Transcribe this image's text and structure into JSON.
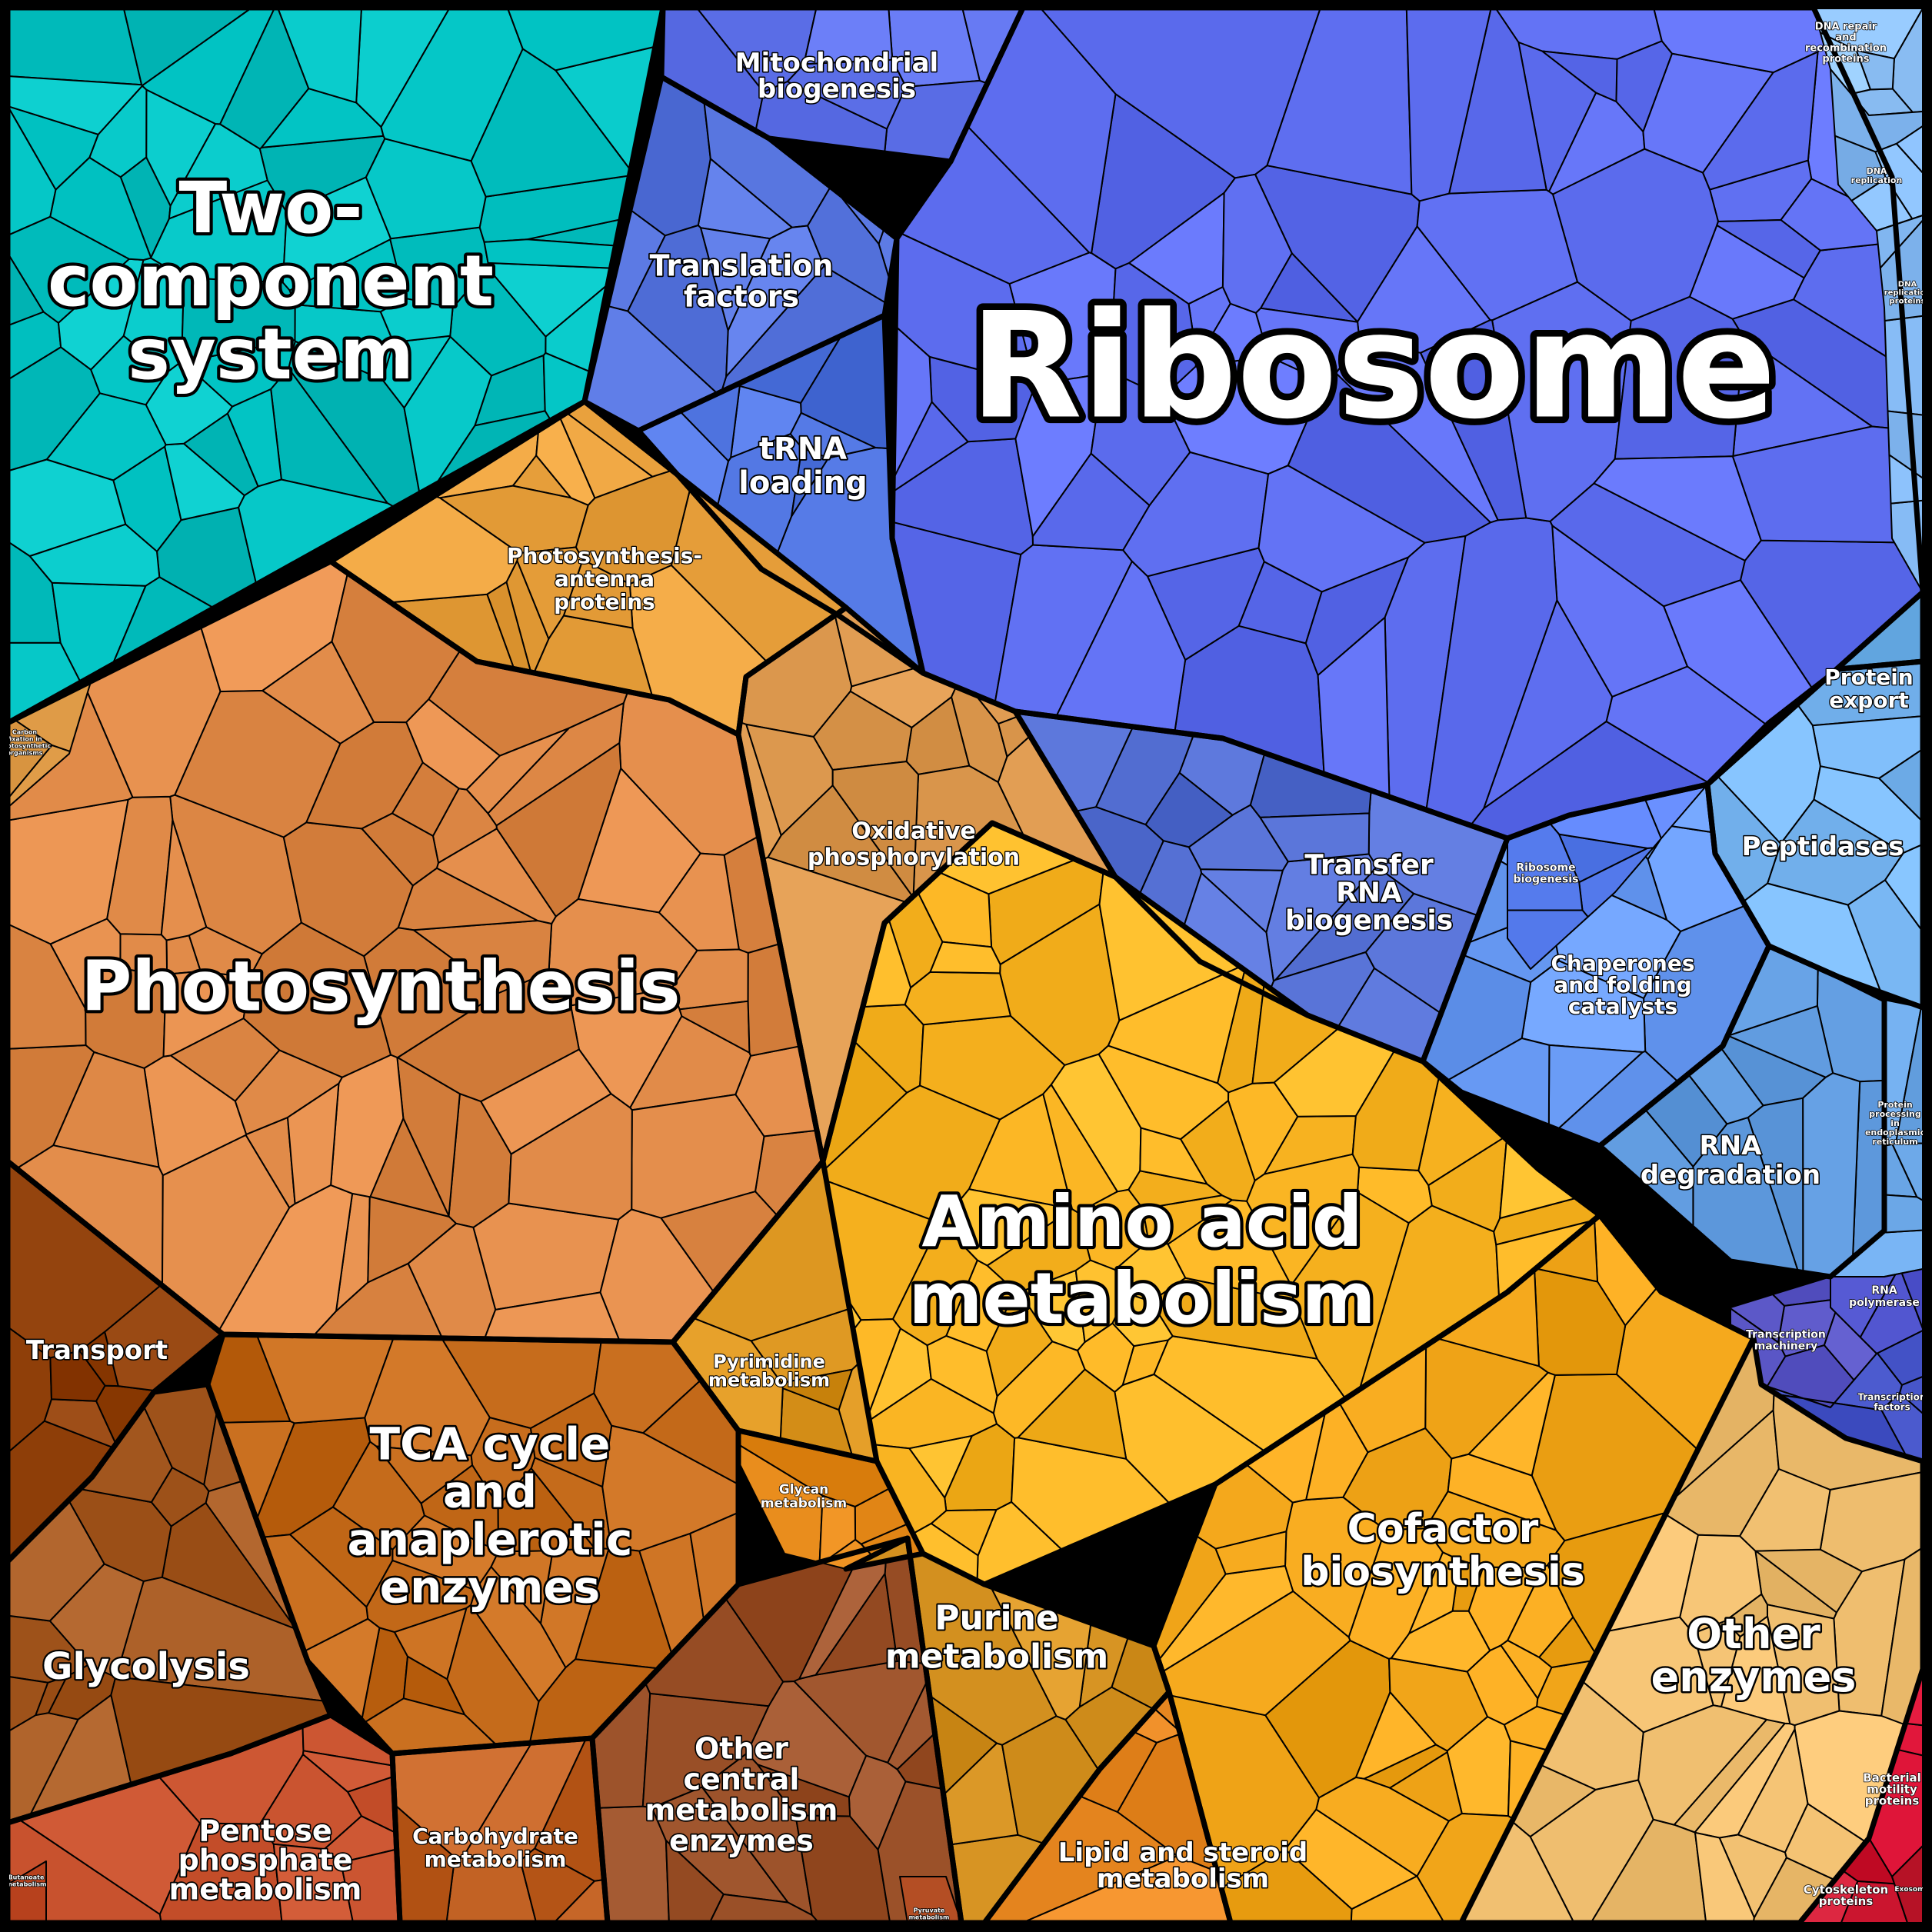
{
  "regions": [
    {
      "key": "two_component",
      "label_lines": [
        "Two-",
        "component",
        "system"
      ],
      "color": "#00c2c2",
      "role": "category"
    },
    {
      "key": "mitochondrial_biogenesis",
      "label_lines": [
        "Mitochondrial",
        "biogenesis"
      ],
      "color": "#5c6fe8",
      "role": "subcategory"
    },
    {
      "key": "translation_factors",
      "label_lines": [
        "Translation",
        "factors"
      ],
      "color": "#5a78e2",
      "role": "subcategory"
    },
    {
      "key": "trna_loading",
      "label_lines": [
        "tRNA",
        "loading"
      ],
      "color": "#4f74e0",
      "role": "subcategory"
    },
    {
      "key": "ribosome",
      "label_lines": [
        "Ribosome"
      ],
      "color": "#6070f2",
      "role": "category"
    },
    {
      "key": "dna_repair",
      "label_lines": [
        "DNA repair",
        "and",
        "recombination",
        "proteins"
      ],
      "color": "#8fc2f8",
      "role": "small"
    },
    {
      "key": "dna_replication",
      "label_lines": [
        "DNA",
        "replication"
      ],
      "color": "#86bbf5",
      "role": "small"
    },
    {
      "key": "dna_replication_proteins",
      "label_lines": [
        "DNA",
        "replication",
        "proteins"
      ],
      "color": "#86bbf5",
      "role": "small"
    },
    {
      "key": "protein_export",
      "label_lines": [
        "Protein",
        "export"
      ],
      "color": "#6aaee8",
      "role": "subcategory"
    },
    {
      "key": "peptidases",
      "label_lines": [
        "Peptidases"
      ],
      "color": "#7ab8f4",
      "role": "subcategory"
    },
    {
      "key": "chaperones",
      "label_lines": [
        "Chaperones",
        "and folding",
        "catalysts"
      ],
      "color": "#6a9cf6",
      "role": "subcategory"
    },
    {
      "key": "rna_degradation",
      "label_lines": [
        "RNA",
        "degradation"
      ],
      "color": "#5f9ade",
      "role": "subcategory"
    },
    {
      "key": "protein_processing_er",
      "label_lines": [
        "Protein",
        "processing",
        "in",
        "endoplasmic",
        "reticulum"
      ],
      "color": "#6eaaea",
      "role": "small"
    },
    {
      "key": "transfer_rna_biogenesis",
      "label_lines": [
        "Transfer",
        "RNA",
        "biogenesis"
      ],
      "color": "#5570d4",
      "role": "subcategory"
    },
    {
      "key": "ribosome_biogenesis",
      "label_lines": [
        "Ribosome",
        "biogenesis"
      ],
      "color": "#5a80f2",
      "role": "small"
    },
    {
      "key": "rna_polymerase",
      "label_lines": [
        "RNA",
        "polymerase"
      ],
      "color": "#4e52cc",
      "role": "small"
    },
    {
      "key": "transcription_machinery",
      "label_lines": [
        "Transcription",
        "machinery"
      ],
      "color": "#5a56c6",
      "role": "small"
    },
    {
      "key": "transcription_factors",
      "label_lines": [
        "Transcription",
        "factors"
      ],
      "color": "#3f4ec2",
      "role": "small"
    },
    {
      "key": "photosynthesis_antenna",
      "label_lines": [
        "Photosynthesis-",
        "antenna",
        "proteins"
      ],
      "color": "#e8a03c",
      "role": "subcategory"
    },
    {
      "key": "photosynthesis",
      "label_lines": [
        "Photosynthesis"
      ],
      "color": "#e08a48",
      "role": "category"
    },
    {
      "key": "oxidative_phosphorylation",
      "label_lines": [
        "Oxidative",
        "phosphorylation"
      ],
      "color": "#d8944a",
      "role": "subcategory"
    },
    {
      "key": "carbon_fixation",
      "label_lines": [
        "Carbon",
        "fixation in",
        "photosynthetic",
        "organisms"
      ],
      "color": "#d4903c",
      "role": "small"
    },
    {
      "key": "transport",
      "label_lines": [
        "Transport"
      ],
      "color": "#8e3e08",
      "role": "subcategory"
    },
    {
      "key": "tca_cycle",
      "label_lines": [
        "TCA cycle",
        "and",
        "anaplerotic",
        "enzymes"
      ],
      "color": "#c46a1a",
      "role": "subcategory"
    },
    {
      "key": "glycolysis",
      "label_lines": [
        "Glycolysis"
      ],
      "color": "#a65a22",
      "role": "subcategory"
    },
    {
      "key": "pentose_phosphate",
      "label_lines": [
        "Pentose",
        "phosphate",
        "metabolism"
      ],
      "color": "#c8522e",
      "role": "subcategory"
    },
    {
      "key": "butanoate",
      "label_lines": [
        "Butanoate",
        "metabolism"
      ],
      "color": "#c24c28",
      "role": "small"
    },
    {
      "key": "carbohydrate_metabolism",
      "label_lines": [
        "Carbohydrate",
        "metabolism"
      ],
      "color": "#c06022",
      "role": "subcategory"
    },
    {
      "key": "other_central",
      "label_lines": [
        "Other",
        "central",
        "metabolism",
        "enzymes"
      ],
      "color": "#9c522a",
      "role": "subcategory"
    },
    {
      "key": "pyruvate",
      "label_lines": [
        "Pyruvate",
        "metabolism"
      ],
      "color": "#b04a20",
      "role": "small"
    },
    {
      "key": "amino_acid",
      "label_lines": [
        "Amino acid",
        "metabolism"
      ],
      "color": "#fbb624",
      "role": "category"
    },
    {
      "key": "pyrimidine",
      "label_lines": [
        "Pyrimidine",
        "metabolism"
      ],
      "color": "#d8921c",
      "role": "subcategory"
    },
    {
      "key": "glycan",
      "label_lines": [
        "Glycan",
        "metabolism"
      ],
      "color": "#e88c1c",
      "role": "small"
    },
    {
      "key": "purine",
      "label_lines": [
        "Purine",
        "metabolism"
      ],
      "color": "#d89524",
      "role": "subcategory"
    },
    {
      "key": "cofactor",
      "label_lines": [
        "Cofactor",
        "biosynthesis"
      ],
      "color": "#f4a81c",
      "role": "subcategory"
    },
    {
      "key": "lipid_steroid",
      "label_lines": [
        "Lipid and steroid",
        "metabolism"
      ],
      "color": "#ec8c26",
      "role": "subcategory"
    },
    {
      "key": "other_enzymes",
      "label_lines": [
        "Other",
        "enzymes"
      ],
      "color": "#eebd6e",
      "role": "subcategory"
    },
    {
      "key": "bacterial_motility",
      "label_lines": [
        "Bacterial",
        "motility",
        "proteins"
      ],
      "color": "#e0163a",
      "role": "small"
    },
    {
      "key": "cytoskeleton",
      "label_lines": [
        "Cytoskeleton",
        "proteins"
      ],
      "color": "#d01a34",
      "role": "small"
    },
    {
      "key": "exosome",
      "label_lines": [
        "Exosome"
      ],
      "color": "#b81428",
      "role": "small"
    }
  ]
}
